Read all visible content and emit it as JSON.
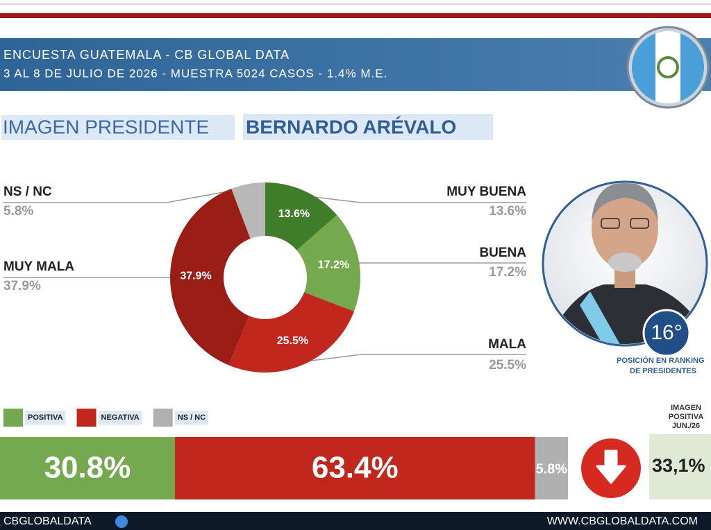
{
  "header": {
    "lines": [
      "ENCUESTA GUATEMALA - CB GLOBAL DATA",
      "3 AL 8 DE JULIO DE 2026 - MUESTRA 5024 CASOS - 1.4% M.E."
    ],
    "title": "IMAGEN PRESIDENTE",
    "name": "BERNARDO ARÉVALO"
  },
  "chart_data": [
    {
      "type": "donut",
      "categories": [
        "MUY BUENA",
        "BUENA",
        "MALA",
        "MUY MALA",
        "NS / NC"
      ],
      "values": [
        13.6,
        17.2,
        25.5,
        37.9,
        5.8
      ],
      "value_labels": [
        "13.6%",
        "17.2%",
        "25.5%",
        "37.9%",
        "5.8%"
      ],
      "colors": [
        "#3f7d2b",
        "#74a94f",
        "#c1271d",
        "#9a1e16",
        "#b8b8b8"
      ]
    },
    {
      "type": "stacked-bar",
      "xlim": [
        0,
        100
      ],
      "series": [
        {
          "name": "POSITIVA",
          "color": "#74a94f",
          "values": [
            30.8
          ],
          "value_labels": [
            "30.8%"
          ]
        },
        {
          "name": "NEGATIVA",
          "color": "#c1271d",
          "values": [
            63.4
          ],
          "value_labels": [
            "63.4%"
          ]
        },
        {
          "name": "NS / NC",
          "color": "#b0b0b0",
          "values": [
            5.8
          ],
          "value_labels": [
            "5.8%"
          ]
        }
      ]
    }
  ],
  "ranking": {
    "position": "16°",
    "caption": [
      "POSICIÓN EN RANKING",
      "DE PRESIDENTES"
    ]
  },
  "previous": {
    "heading": [
      "IMAGEN",
      "POSITIVA",
      "JUN./26"
    ],
    "value_label": "33,1%"
  },
  "footer": {
    "left": "CBGLOBALDATA",
    "right": "WWW.CBGLOBALDATA.COM"
  }
}
